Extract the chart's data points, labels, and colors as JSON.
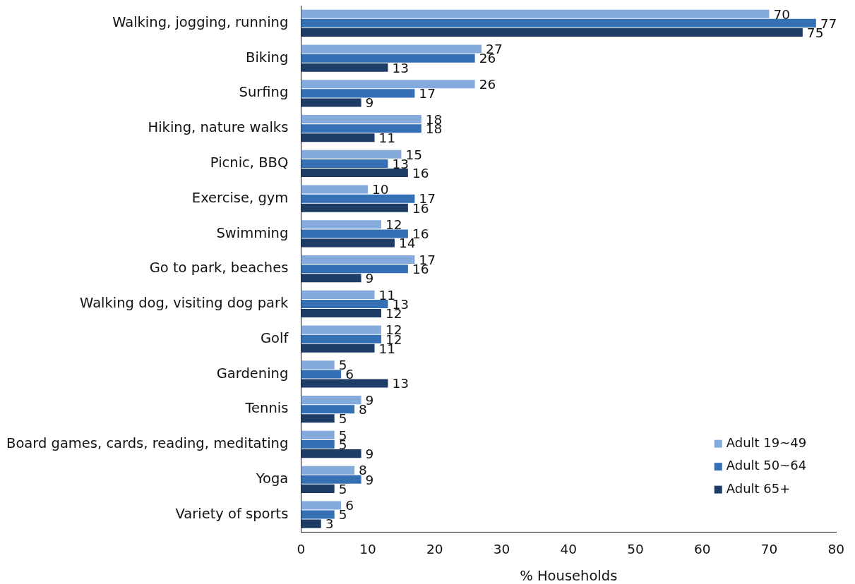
{
  "chart_data": {
    "type": "bar",
    "orientation": "horizontal",
    "categories": [
      "Walking, jogging, running",
      "Biking",
      "Surfing",
      "Hiking, nature walks",
      "Picnic, BBQ",
      "Exercise, gym",
      "Swimming",
      "Go to park, beaches",
      "Walking dog, visiting dog park",
      "Golf",
      "Gardening",
      "Tennis",
      "Board games, cards, reading, meditating",
      "Yoga",
      "Variety of sports"
    ],
    "series": [
      {
        "name": "Adult 19~49",
        "color": "#84abdc",
        "values": [
          70,
          27,
          26,
          18,
          15,
          10,
          12,
          17,
          11,
          12,
          5,
          9,
          5,
          8,
          6
        ]
      },
      {
        "name": "Adult 50~64",
        "color": "#3570b5",
        "values": [
          77,
          26,
          17,
          18,
          13,
          17,
          16,
          16,
          13,
          12,
          6,
          8,
          5,
          9,
          5
        ]
      },
      {
        "name": "Adult 65+",
        "color": "#1e3d66",
        "values": [
          75,
          13,
          9,
          11,
          16,
          16,
          14,
          9,
          12,
          11,
          13,
          5,
          9,
          5,
          3
        ]
      }
    ],
    "xlim": [
      0,
      80
    ],
    "xticks": [
      0,
      10,
      20,
      30,
      40,
      50,
      60,
      70,
      80
    ],
    "xlabel": "% Households",
    "legend": "bottom right",
    "data_labels": true
  }
}
